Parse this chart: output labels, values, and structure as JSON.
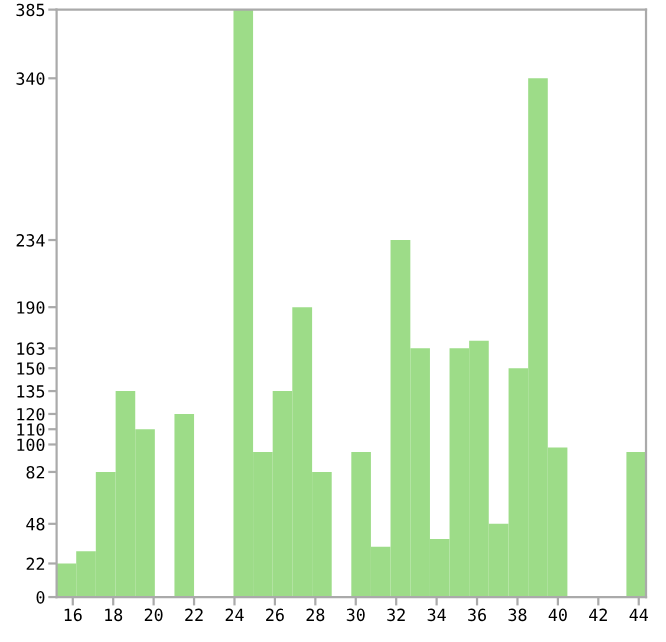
{
  "chart_data": {
    "type": "histogram",
    "bins": [
      15.2,
      16.17,
      17.14,
      18.12,
      19.09,
      20.06,
      21.03,
      22.0,
      22.98,
      23.95,
      24.92,
      25.89,
      26.86,
      27.84,
      28.81,
      29.78,
      30.75,
      31.72,
      32.7,
      33.67,
      34.64,
      35.61,
      36.58,
      37.56,
      38.53,
      39.5,
      40.47,
      41.44,
      42.42,
      43.39,
      44.36
    ],
    "values": [
      22,
      30,
      82,
      135,
      110,
      0,
      120,
      0,
      0,
      385,
      95,
      135,
      190,
      82,
      0,
      95,
      33,
      234,
      163,
      38,
      163,
      168,
      48,
      150,
      340,
      98,
      0,
      0,
      0,
      95
    ],
    "color": "#9ddc88",
    "xlim": [
      15.2,
      44.36
    ],
    "xticks": [
      16,
      18,
      20,
      22,
      24,
      26,
      28,
      30,
      32,
      34,
      36,
      38,
      40,
      42,
      44
    ],
    "ylim": [
      0,
      385
    ],
    "yticks": [
      0,
      22,
      48,
      82,
      100,
      110,
      120,
      135,
      150,
      163,
      190,
      234,
      340,
      385
    ],
    "grid": false
  }
}
